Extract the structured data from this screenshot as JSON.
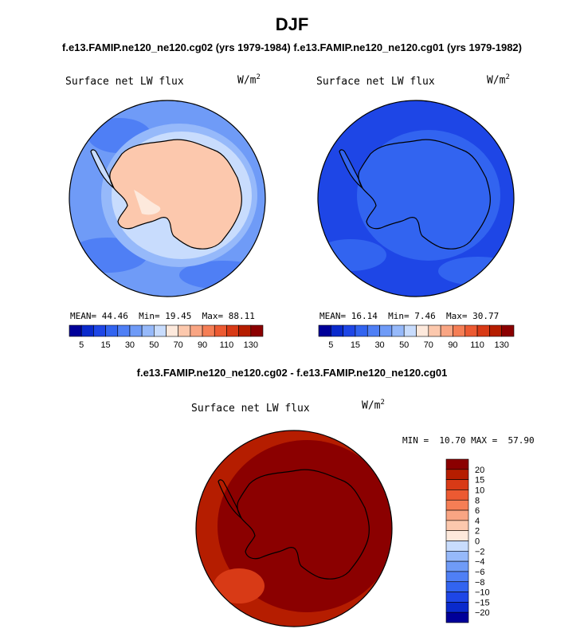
{
  "figure": {
    "title": "DJF",
    "case_a": "f.e13.FAMIP.ne120_ne120.cg02 (yrs 1979-1984)",
    "case_b": "f.e13.FAMIP.ne120_ne120.cg01 (yrs 1979-1982)",
    "diff_title": "f.e13.FAMIP.ne120_ne120.cg02 - f.e13.FAMIP.ne120_ne120.cg01"
  },
  "panels": {
    "left": {
      "variable": "Surface net LW flux",
      "units": "W/m",
      "units_exp": "2",
      "mean_label": "MEAN=",
      "mean": "44.46",
      "min_label": "Min=",
      "min": "19.45",
      "max_label": "Max=",
      "max": "88.11"
    },
    "right": {
      "variable": "Surface net LW flux",
      "units": "W/m",
      "units_exp": "2",
      "mean_label": "MEAN=",
      "mean": "16.14",
      "min_label": "Min=",
      "min": "7.46",
      "max_label": "Max=",
      "max": "30.77"
    },
    "diff": {
      "variable": "Surface net LW flux",
      "units": "W/m",
      "units_exp": "2",
      "minmax": "MIN =  10.70 MAX =  57.90"
    }
  },
  "colors": {
    "abs_scale": [
      "#000099",
      "#0a2acc",
      "#1e46e6",
      "#3264f0",
      "#4f7ff5",
      "#6f9bf7",
      "#96b9fa",
      "#c8dcfd",
      "#fde9dc",
      "#fcc8ad",
      "#f9a583",
      "#f57e55",
      "#ec5a32",
      "#d83a16",
      "#b51d00",
      "#8b0000"
    ],
    "diff_scale": [
      "#000099",
      "#0a2acc",
      "#1e46e6",
      "#3264f0",
      "#4f7ff5",
      "#6f9bf7",
      "#96b9fa",
      "#c8dcfd",
      "#fde9dc",
      "#fcc8ad",
      "#f9a583",
      "#f57e55",
      "#ec5a32",
      "#d83a16",
      "#b51d00",
      "#8b0000"
    ],
    "continent_outline": "#000000"
  },
  "chart_data": [
    {
      "type": "heatmap",
      "title": "Surface net LW flux",
      "units": "W/m2",
      "colorbar_ticks": [
        "5",
        "15",
        "30",
        "50",
        "70",
        "90",
        "110",
        "130"
      ],
      "mean": 44.46,
      "min": 19.45,
      "max": 88.11
    },
    {
      "type": "heatmap",
      "title": "Surface net LW flux",
      "units": "W/m2",
      "colorbar_ticks": [
        "5",
        "15",
        "30",
        "50",
        "70",
        "90",
        "110",
        "130"
      ],
      "mean": 16.14,
      "min": 7.46,
      "max": 30.77
    },
    {
      "type": "heatmap",
      "title": "Surface net LW flux",
      "units": "W/m2",
      "colorbar_ticks": [
        "20",
        "15",
        "10",
        "8",
        "6",
        "4",
        "2",
        "0",
        "−2",
        "−4",
        "−6",
        "−8",
        "−10",
        "−15",
        "−20"
      ],
      "min": 10.7,
      "max": 57.9
    }
  ]
}
